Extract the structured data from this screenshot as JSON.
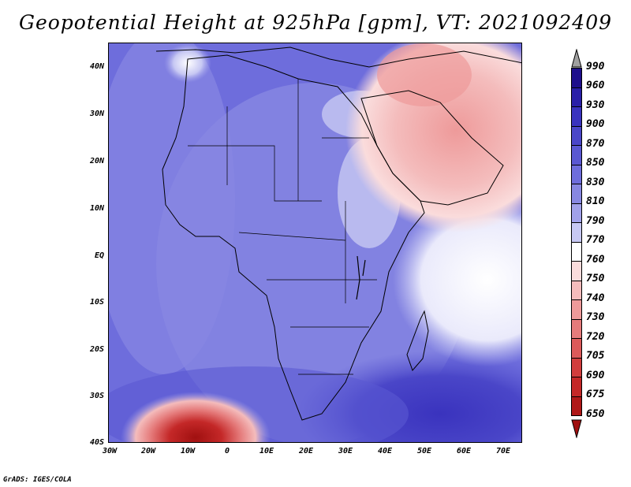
{
  "title": "Geopotential Height at 925hPa [gpm], VT: 2021092409",
  "footer": "GrADS: IGES/COLA",
  "map": {
    "lat_labels": [
      "40N",
      "30N",
      "20N",
      "10N",
      "EQ",
      "10S",
      "20S",
      "30S",
      "40S"
    ],
    "lon_labels": [
      "30W",
      "20W",
      "10W",
      "0",
      "10E",
      "20E",
      "30E",
      "40E",
      "50E",
      "60E",
      "70E"
    ],
    "region": "Africa, Arabian Peninsula and surrounding oceans"
  },
  "legend": {
    "levels": [
      "990",
      "960",
      "930",
      "900",
      "870",
      "850",
      "830",
      "810",
      "790",
      "770",
      "760",
      "750",
      "740",
      "730",
      "720",
      "705",
      "690",
      "675",
      "650"
    ],
    "colors": [
      "#a0a0a0",
      "#1e0f8c",
      "#2a1fa8",
      "#3a33be",
      "#4a46c8",
      "#5a58d2",
      "#6e6ddc",
      "#8787e2",
      "#a1a1ea",
      "#c7c8f3",
      "#ffffff",
      "#fadcdc",
      "#f4bcbc",
      "#ee9a9a",
      "#e57b7b",
      "#dc5a5a",
      "#d13d3d",
      "#c42828",
      "#b01818",
      "#a01010"
    ]
  }
}
